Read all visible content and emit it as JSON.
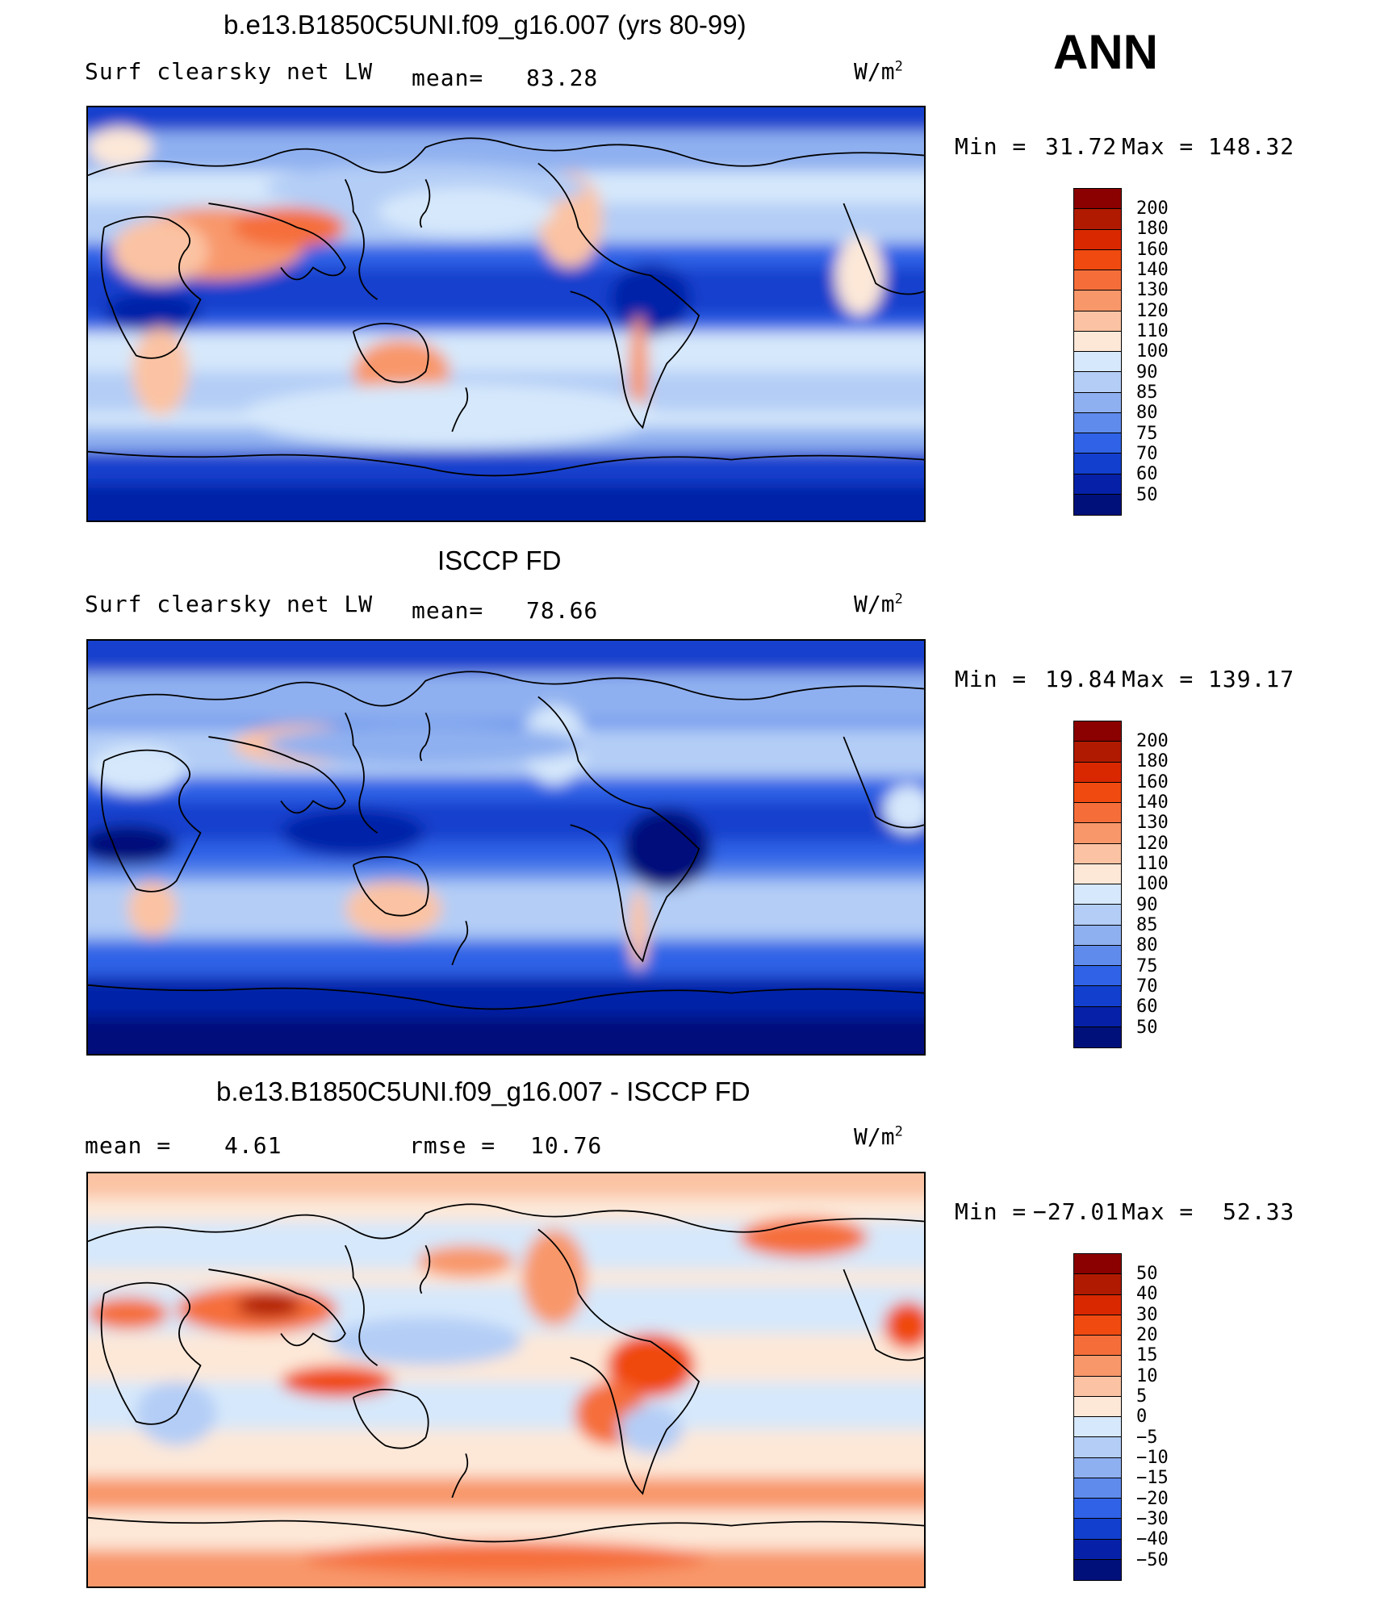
{
  "season": "ANN",
  "panels": [
    {
      "title": "b.e13.B1850C5UNI.f09_g16.007 (yrs 80-99)",
      "variable": "Surf clearsky net LW",
      "stat1_label": "mean=",
      "stat1_value": "83.28",
      "units": "W/m",
      "units_sup": "2",
      "minmax_label_min": "Min =",
      "min": "31.72",
      "minmax_label_max": "Max =",
      "max": "148.32",
      "levels": [
        "200",
        "180",
        "160",
        "140",
        "130",
        "120",
        "110",
        "100",
        "90",
        "85",
        "80",
        "75",
        "70",
        "60",
        "50"
      ],
      "colors": [
        "#8b0000",
        "#b01a00",
        "#d92800",
        "#f04a10",
        "#f56e3a",
        "#f8976a",
        "#fbc3a3",
        "#fde8d8",
        "#d6e8fb",
        "#b3cdf6",
        "#8fb0f0",
        "#5f8cec",
        "#2f62e6",
        "#123fcd",
        "#0621a8",
        "#00107a"
      ]
    },
    {
      "title": "ISCCP FD",
      "variable": "Surf clearsky net LW",
      "stat1_label": "mean=",
      "stat1_value": "78.66",
      "units": "W/m",
      "units_sup": "2",
      "minmax_label_min": "Min =",
      "min": "19.84",
      "minmax_label_max": "Max =",
      "max": "139.17",
      "levels": [
        "200",
        "180",
        "160",
        "140",
        "130",
        "120",
        "110",
        "100",
        "90",
        "85",
        "80",
        "75",
        "70",
        "60",
        "50"
      ],
      "colors": [
        "#8b0000",
        "#b01a00",
        "#d92800",
        "#f04a10",
        "#f56e3a",
        "#f8976a",
        "#fbc3a3",
        "#fde8d8",
        "#d6e8fb",
        "#b3cdf6",
        "#8fb0f0",
        "#5f8cec",
        "#2f62e6",
        "#123fcd",
        "#0621a8",
        "#00107a"
      ]
    },
    {
      "title": "b.e13.B1850C5UNI.f09_g16.007 - ISCCP FD",
      "stat1_label": "mean =",
      "stat1_value": "4.61",
      "stat2_label": "rmse =",
      "stat2_value": "10.76",
      "units": "W/m",
      "units_sup": "2",
      "minmax_label_min": "Min =",
      "min": "−27.01",
      "minmax_label_max": "Max =",
      "max": "52.33",
      "levels": [
        "50",
        "40",
        "30",
        "20",
        "15",
        "10",
        "5",
        "0",
        "−5",
        "−10",
        "−15",
        "−20",
        "−30",
        "−40",
        "−50"
      ],
      "colors": [
        "#8b0000",
        "#b01a00",
        "#d92800",
        "#f04a10",
        "#f56e3a",
        "#f8976a",
        "#fbc3a3",
        "#fde8d8",
        "#d6e8fb",
        "#b3cdf6",
        "#8fb0f0",
        "#5f8cec",
        "#2f62e6",
        "#123fcd",
        "#0621a8",
        "#00107a"
      ]
    }
  ]
}
